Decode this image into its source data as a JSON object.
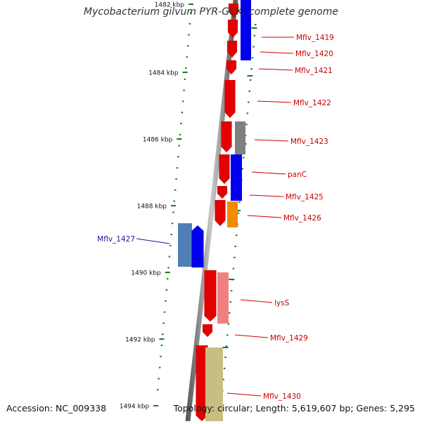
{
  "title": "Mycobacterium gilvum PYR-GCK, complete genome",
  "footer": {
    "accession": "Accession: NC_009338",
    "summary": "Topology: circular; Length: 5,619,607 bp; Genes: 5,295"
  },
  "colors": {
    "backbone": "#7a7a7a",
    "tick": "#1a7a1a",
    "forward_gene": "#e30000",
    "blue_gene": "#0000ee",
    "steelblue_gene": "#4f7fb5",
    "grey_gene": "#808080",
    "orange_gene": "#f08c00",
    "pink_gene": "#f08080",
    "khaki_gene": "#c8be82",
    "label_red": "#cc0000",
    "label_blue": "#1a1aa0"
  },
  "scale_ticks": [
    "1482 kbp",
    "1484 kbp",
    "1486 kbp",
    "1488 kbp",
    "1490 kbp",
    "1492 kbp",
    "1494 kbp"
  ],
  "gene_labels": [
    {
      "name": "Mflv_1419",
      "color": "red"
    },
    {
      "name": "Mflv_1420",
      "color": "red"
    },
    {
      "name": "Mflv_1421",
      "color": "red"
    },
    {
      "name": "Mflv_1422",
      "color": "red"
    },
    {
      "name": "Mflv_1423",
      "color": "red"
    },
    {
      "name": "panC",
      "color": "red"
    },
    {
      "name": "Mflv_1425",
      "color": "red"
    },
    {
      "name": "Mflv_1426",
      "color": "red"
    },
    {
      "name": "Mflv_1427",
      "color": "blue"
    },
    {
      "name": "lysS",
      "color": "red"
    },
    {
      "name": "Mflv_1429",
      "color": "red"
    },
    {
      "name": "Mflv_1430",
      "color": "red"
    }
  ]
}
